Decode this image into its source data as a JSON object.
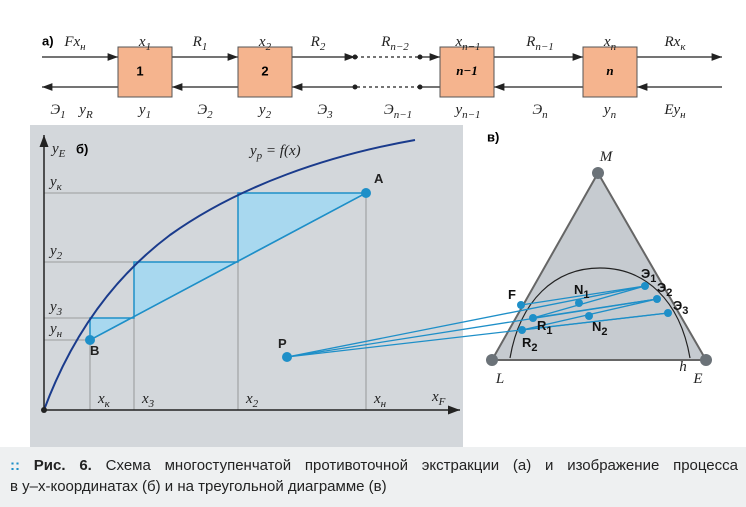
{
  "scheme": {
    "label": "а)",
    "top_labels": [
      {
        "t": "Fx",
        "s": "н"
      },
      {
        "t": "x",
        "s": "1"
      },
      {
        "t": "R",
        "s": "1"
      },
      {
        "t": "x",
        "s": "2"
      },
      {
        "t": "R",
        "s": "2"
      },
      {
        "t": "R",
        "s": "n−2"
      },
      {
        "t": "x",
        "s": "n−1"
      },
      {
        "t": "R",
        "s": "n−1"
      },
      {
        "t": "x",
        "s": "n"
      },
      {
        "t": "Rx",
        "s": "к"
      }
    ],
    "stages": [
      "1",
      "2",
      "n−1",
      "n"
    ],
    "bottom_labels": [
      {
        "t": "Э",
        "s": "1"
      },
      {
        "t": "y",
        "s": "R"
      },
      {
        "t": "y",
        "s": "1"
      },
      {
        "t": "Э",
        "s": "2"
      },
      {
        "t": "y",
        "s": "2"
      },
      {
        "t": "Э",
        "s": "3"
      },
      {
        "t": "Э",
        "s": "n−1"
      },
      {
        "t": "y",
        "s": "n−1"
      },
      {
        "t": "Э",
        "s": "n"
      },
      {
        "t": "y",
        "s": "n"
      },
      {
        "t": "Ey",
        "s": "н"
      }
    ]
  },
  "graph": {
    "label": "б)",
    "y_axis": {
      "t": "y",
      "s": "E"
    },
    "x_axis": {
      "t": "x",
      "s": "F"
    },
    "curve_label": {
      "t": "y",
      "s": "р",
      "r": " = f(x)"
    },
    "y_ticks": [
      {
        "t": "y",
        "s": "к"
      },
      {
        "t": "y",
        "s": "2"
      },
      {
        "t": "y",
        "s": "3"
      },
      {
        "t": "y",
        "s": "н"
      }
    ],
    "x_ticks": [
      {
        "t": "x",
        "s": "к"
      },
      {
        "t": "x",
        "s": "3"
      },
      {
        "t": "x",
        "s": "2"
      },
      {
        "t": "x",
        "s": "н"
      }
    ],
    "points": [
      {
        "t": "A"
      },
      {
        "t": "B"
      },
      {
        "t": "P"
      }
    ]
  },
  "triangle": {
    "label": "в)",
    "vertices": [
      {
        "t": "M"
      },
      {
        "t": "L"
      },
      {
        "t": "E"
      }
    ],
    "h": {
      "t": "h"
    },
    "points": [
      {
        "t": "F"
      },
      {
        "t": "N",
        "s": "1"
      },
      {
        "t": "R",
        "s": "1"
      },
      {
        "t": "Э",
        "s": "1"
      },
      {
        "t": "Э",
        "s": "2"
      },
      {
        "t": "Э",
        "s": "3"
      },
      {
        "t": "N",
        "s": "2"
      },
      {
        "t": "R",
        "s": "2"
      }
    ]
  },
  "caption": {
    "number": "Рис. 6.",
    "lines": [
      "Схема многоступенчатой противоточной экстракции (а) и изображение процесса",
      "в y–x-координатах (б) и на треугольной диаграмме (в)"
    ]
  }
}
